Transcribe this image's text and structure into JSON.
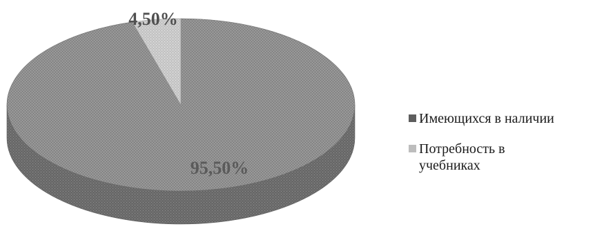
{
  "chart_data": {
    "type": "pie",
    "slices": [
      {
        "label": "Имеющихся в наличии",
        "value": 95.5,
        "display": "95,50%",
        "color": "#8c8c8c"
      },
      {
        "label": "Потребность в учебниках",
        "value": 4.5,
        "display": "4,50%",
        "color": "#c4c4c4"
      }
    ],
    "legend_position": "right",
    "3d": true
  },
  "legend": {
    "items": [
      {
        "label": "Имеющихся в наличии",
        "color": "#5e5e5e"
      },
      {
        "label": "Потребность в учебниках",
        "color": "#bdbdbd"
      }
    ]
  },
  "labels": {
    "large": "95,50%",
    "small": "4,50%"
  }
}
